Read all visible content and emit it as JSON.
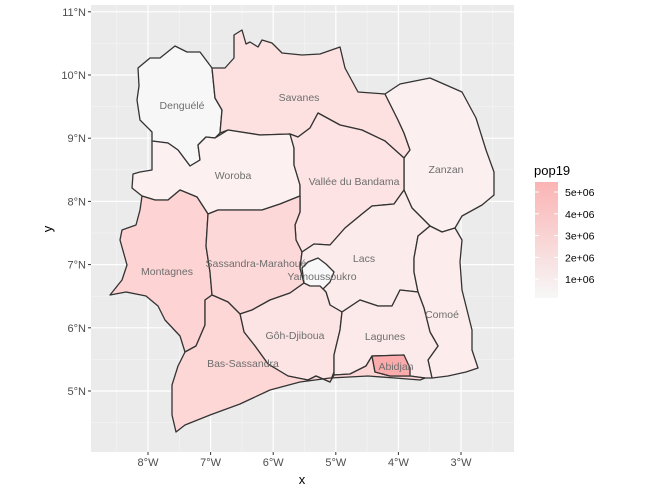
{
  "map": {
    "x_axis": {
      "title": "x",
      "ticks": [
        {
          "value": -8,
          "label": "8°W"
        },
        {
          "value": -7,
          "label": "7°W"
        },
        {
          "value": -6,
          "label": "6°W"
        },
        {
          "value": -5,
          "label": "5°W"
        },
        {
          "value": -4,
          "label": "4°W"
        },
        {
          "value": -3,
          "label": "3°W"
        }
      ]
    },
    "y_axis": {
      "title": "y",
      "ticks": [
        {
          "value": 5,
          "label": "5°N"
        },
        {
          "value": 6,
          "label": "6°N"
        },
        {
          "value": 7,
          "label": "7°N"
        },
        {
          "value": 8,
          "label": "8°N"
        },
        {
          "value": 9,
          "label": "9°N"
        },
        {
          "value": 10,
          "label": "10°N"
        },
        {
          "value": 11,
          "label": "11°N"
        }
      ]
    },
    "regions": [
      {
        "name": "Denguélé",
        "pop19": 300000,
        "fill": "#f7f7f7"
      },
      {
        "name": "Savanes",
        "pop19": 1600000,
        "fill": "#fde1e1"
      },
      {
        "name": "Zanzan",
        "pop19": 1000000,
        "fill": "#fcefef"
      },
      {
        "name": "Woroba",
        "pop19": 900000,
        "fill": "#fcf0f0"
      },
      {
        "name": "Vallée du Bandama",
        "pop19": 1500000,
        "fill": "#fde3e3"
      },
      {
        "name": "Montagnes",
        "pop19": 2700000,
        "fill": "#fdd3d3"
      },
      {
        "name": "Sassandra-Marahoué",
        "pop19": 2800000,
        "fill": "#fdd8d8"
      },
      {
        "name": "Lacs",
        "pop19": 1300000,
        "fill": "#fcebeb"
      },
      {
        "name": "Yamoussoukro",
        "pop19": 300000,
        "fill": "#f8f8f8"
      },
      {
        "name": "Comoé",
        "pop19": 1200000,
        "fill": "#fcecec"
      },
      {
        "name": "Gôh-Djiboua",
        "pop19": 1700000,
        "fill": "#fde4e4"
      },
      {
        "name": "Lagunes",
        "pop19": 1400000,
        "fill": "#fce9e9"
      },
      {
        "name": "Bas-Sassandra",
        "pop19": 2600000,
        "fill": "#fdd6d6"
      },
      {
        "name": "Abidjan",
        "pop19": 5500000,
        "fill": "#fbabab"
      }
    ]
  },
  "legend": {
    "title": "pop19",
    "labels": [
      "5e+06",
      "4e+06",
      "3e+06",
      "2e+06",
      "1e+06"
    ],
    "colors": {
      "high": "#fbb4b4",
      "low": "#f7f7f7"
    }
  }
}
